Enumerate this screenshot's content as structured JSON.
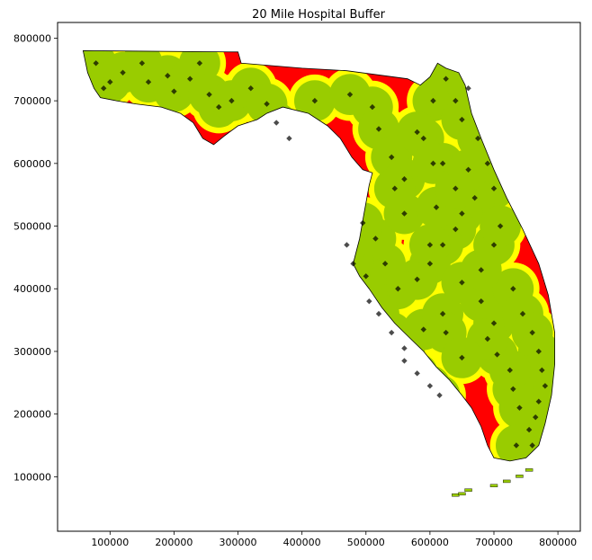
{
  "title": "20 Mile Hospital Buffer",
  "colors": {
    "land_red": "#ff0000",
    "buffer_yellow": "#ffff00",
    "buffer_green": "#99cc00",
    "hospital_marker": "#000000",
    "outline": "#000000"
  },
  "chart_data": {
    "type": "map",
    "title": "20 Mile Hospital Buffer",
    "xlabel": "",
    "ylabel": "",
    "x_ticks": [
      100000,
      200000,
      300000,
      400000,
      500000,
      600000,
      700000,
      800000
    ],
    "y_ticks": [
      100000,
      200000,
      300000,
      400000,
      500000,
      600000,
      700000,
      800000
    ],
    "xlim": [
      18000,
      835000
    ],
    "ylim": [
      13000,
      825000
    ],
    "x_tick_labels": [
      "100000",
      "200000",
      "300000",
      "400000",
      "500000",
      "600000",
      "700000",
      "800000"
    ],
    "y_tick_labels": [
      "100000",
      "200000",
      "300000",
      "400000",
      "500000",
      "600000",
      "700000",
      "800000"
    ],
    "layers": [
      "state outline (red base)",
      "hospital buffer outer (yellow)",
      "hospital buffer inner (green)",
      "hospital points (black diamonds)"
    ],
    "hospitals": [
      [
        78000,
        760000
      ],
      [
        90000,
        720000
      ],
      [
        100000,
        730000
      ],
      [
        120000,
        745000
      ],
      [
        150000,
        760000
      ],
      [
        160000,
        730000
      ],
      [
        190000,
        740000
      ],
      [
        200000,
        715000
      ],
      [
        225000,
        735000
      ],
      [
        240000,
        760000
      ],
      [
        255000,
        710000
      ],
      [
        270000,
        690000
      ],
      [
        290000,
        700000
      ],
      [
        320000,
        720000
      ],
      [
        345000,
        695000
      ],
      [
        360000,
        665000
      ],
      [
        380000,
        640000
      ],
      [
        420000,
        700000
      ],
      [
        475000,
        710000
      ],
      [
        510000,
        690000
      ],
      [
        520000,
        655000
      ],
      [
        540000,
        610000
      ],
      [
        560000,
        575000
      ],
      [
        590000,
        640000
      ],
      [
        605000,
        700000
      ],
      [
        625000,
        735000
      ],
      [
        640000,
        700000
      ],
      [
        650000,
        670000
      ],
      [
        660000,
        720000
      ],
      [
        675000,
        640000
      ],
      [
        690000,
        600000
      ],
      [
        700000,
        560000
      ],
      [
        670000,
        545000
      ],
      [
        650000,
        520000
      ],
      [
        640000,
        495000
      ],
      [
        620000,
        470000
      ],
      [
        600000,
        440000
      ],
      [
        580000,
        415000
      ],
      [
        550000,
        400000
      ],
      [
        530000,
        440000
      ],
      [
        515000,
        480000
      ],
      [
        505000,
        380000
      ],
      [
        520000,
        360000
      ],
      [
        540000,
        330000
      ],
      [
        560000,
        305000
      ],
      [
        590000,
        335000
      ],
      [
        620000,
        360000
      ],
      [
        650000,
        410000
      ],
      [
        680000,
        380000
      ],
      [
        700000,
        345000
      ],
      [
        730000,
        400000
      ],
      [
        745000,
        360000
      ],
      [
        760000,
        330000
      ],
      [
        770000,
        300000
      ],
      [
        775000,
        270000
      ],
      [
        780000,
        245000
      ],
      [
        770000,
        220000
      ],
      [
        765000,
        195000
      ],
      [
        755000,
        175000
      ],
      [
        740000,
        210000
      ],
      [
        730000,
        240000
      ],
      [
        725000,
        270000
      ],
      [
        705000,
        295000
      ],
      [
        690000,
        320000
      ],
      [
        680000,
        430000
      ],
      [
        700000,
        470000
      ],
      [
        710000,
        500000
      ],
      [
        560000,
        520000
      ],
      [
        545000,
        560000
      ],
      [
        600000,
        470000
      ],
      [
        610000,
        530000
      ],
      [
        620000,
        600000
      ],
      [
        580000,
        650000
      ],
      [
        605000,
        600000
      ],
      [
        640000,
        560000
      ],
      [
        660000,
        590000
      ],
      [
        500000,
        420000
      ],
      [
        480000,
        440000
      ],
      [
        470000,
        470000
      ],
      [
        495000,
        505000
      ],
      [
        560000,
        285000
      ],
      [
        580000,
        265000
      ],
      [
        600000,
        245000
      ],
      [
        615000,
        230000
      ],
      [
        625000,
        330000
      ],
      [
        650000,
        290000
      ],
      [
        760000,
        150000
      ],
      [
        735000,
        150000
      ]
    ]
  }
}
